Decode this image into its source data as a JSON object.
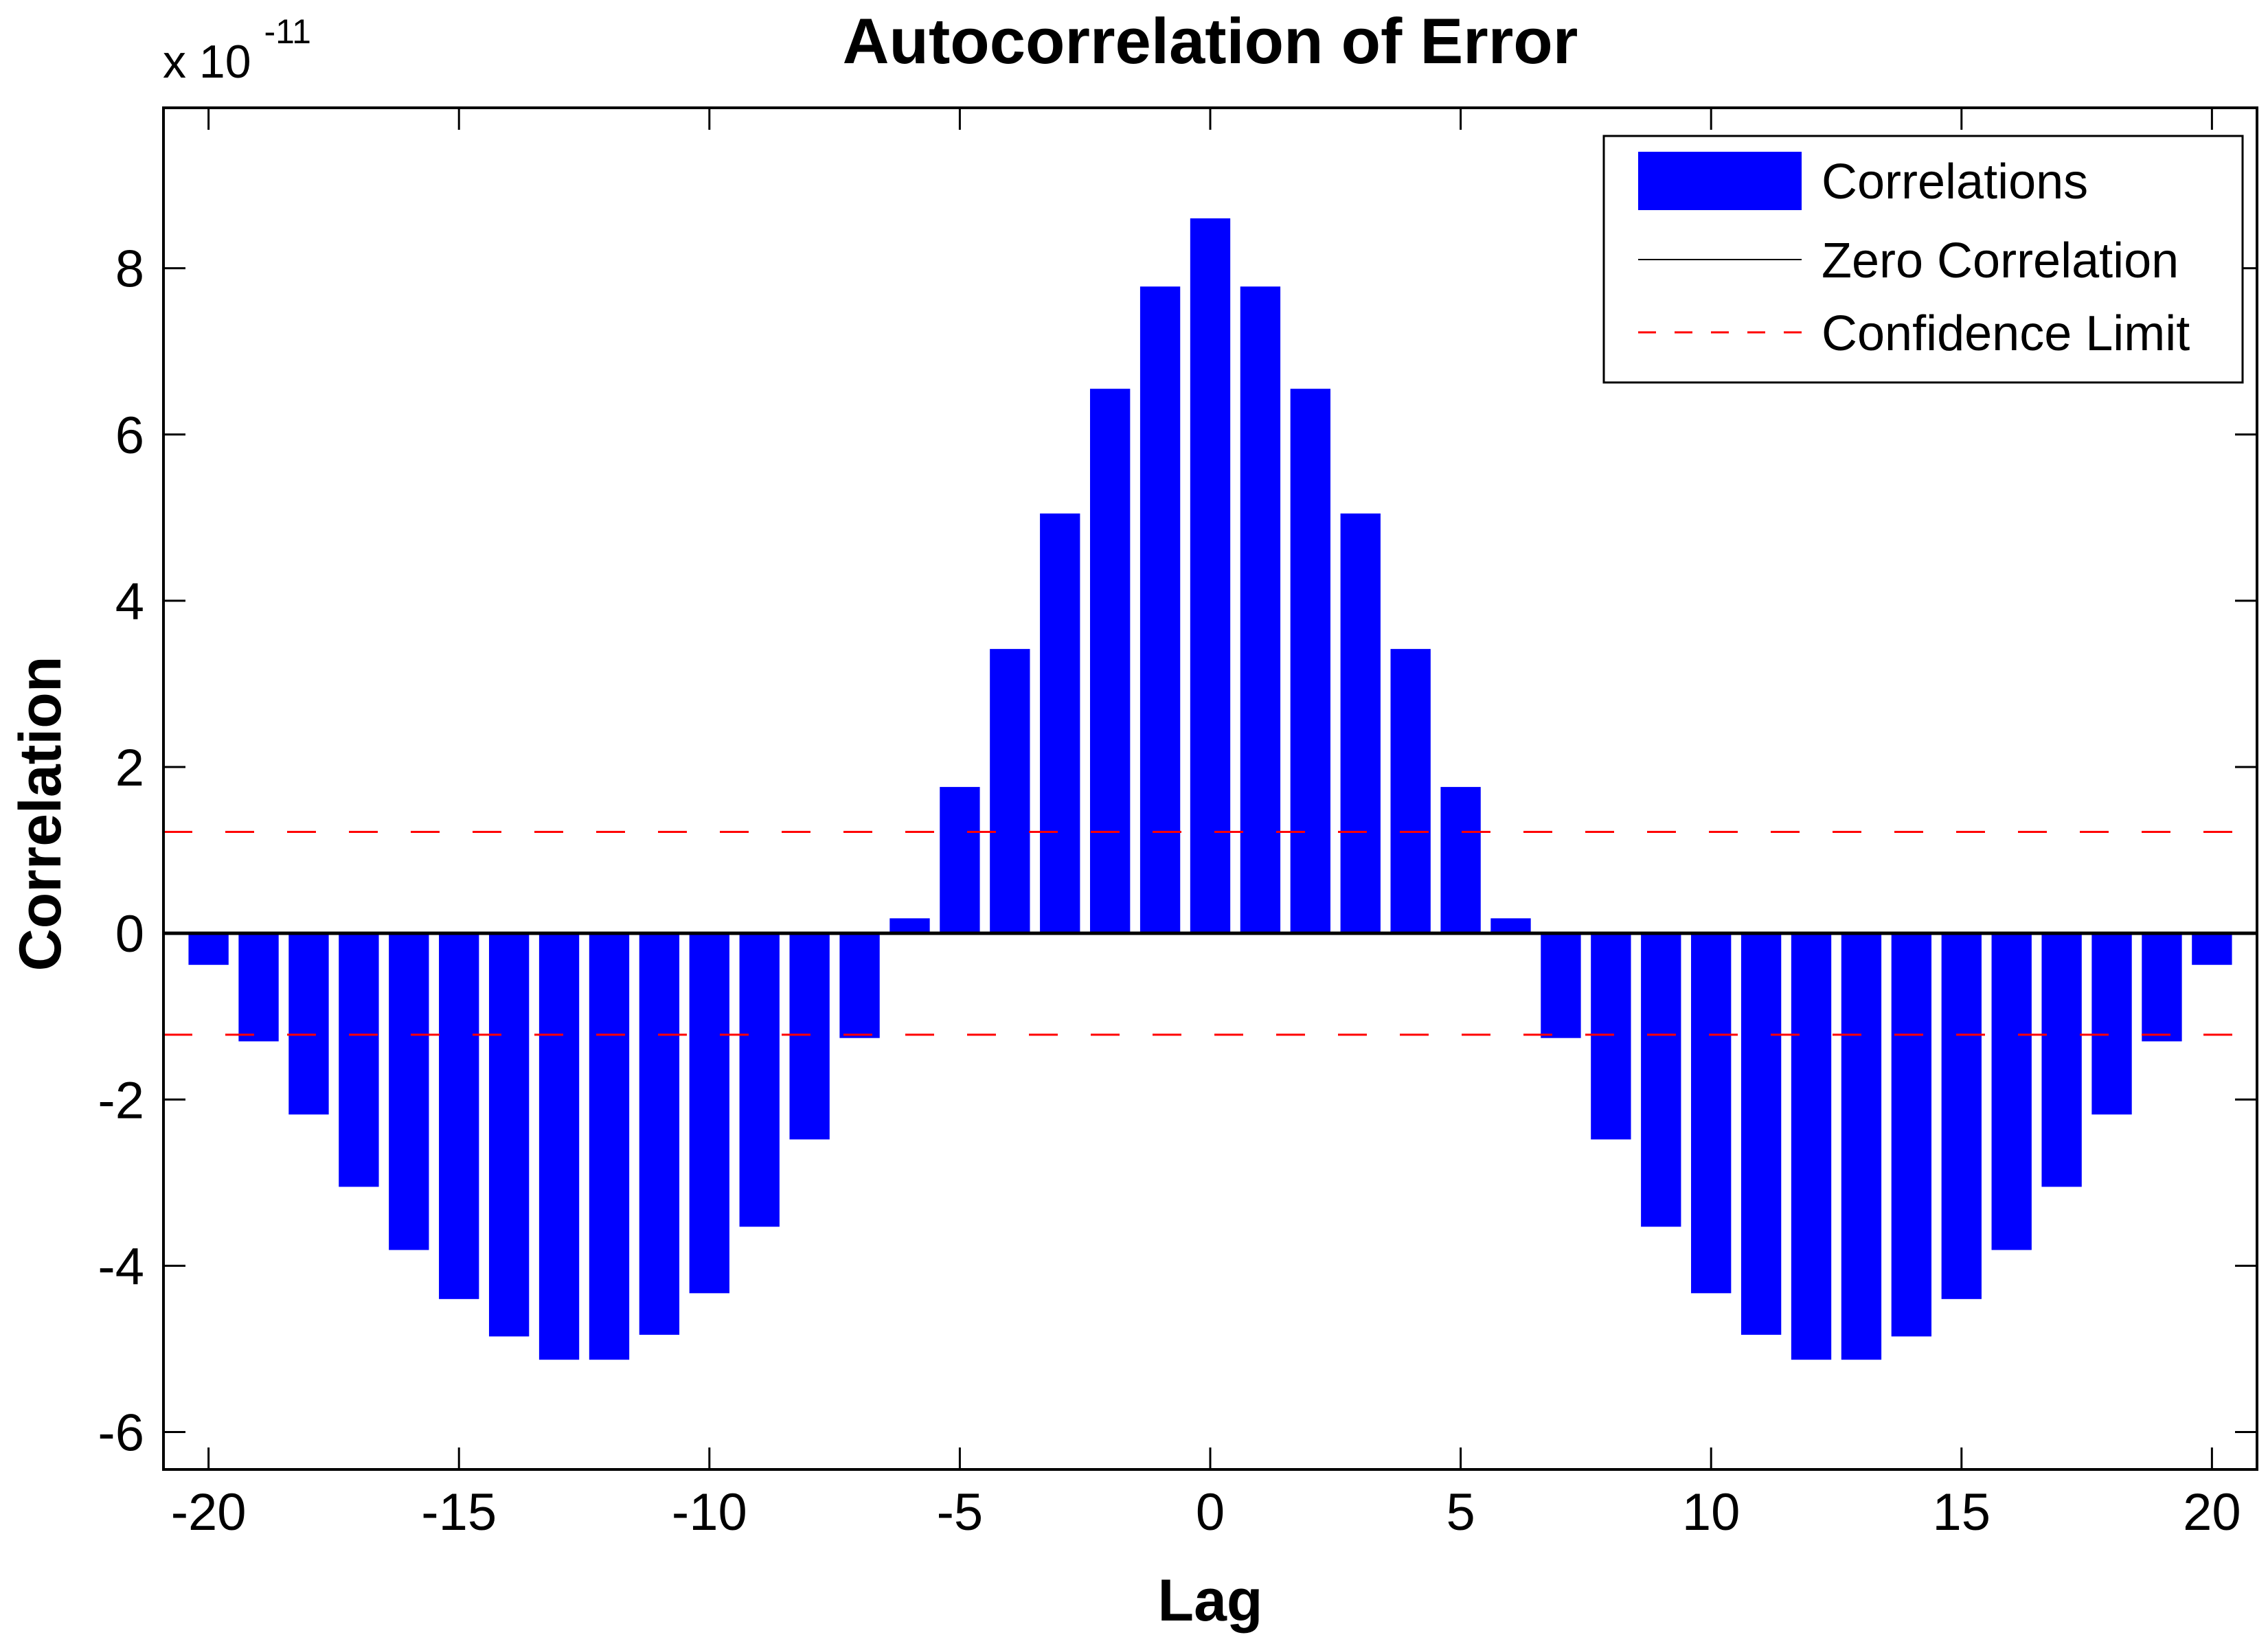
{
  "chart_data": {
    "type": "bar",
    "title": "Autocorrelation of Error",
    "xlabel": "Lag",
    "ylabel": "Correlation",
    "y_axis_multiplier": {
      "base": "x 10",
      "exponent": "-11"
    },
    "value_units": "1e-11",
    "x": [
      -20,
      -19,
      -18,
      -17,
      -16,
      -15,
      -14,
      -13,
      -12,
      -11,
      -10,
      -9,
      -8,
      -7,
      -6,
      -5,
      -4,
      -3,
      -2,
      -1,
      0,
      1,
      2,
      3,
      4,
      5,
      6,
      7,
      8,
      9,
      10,
      11,
      12,
      13,
      14,
      15,
      16,
      17,
      18,
      19,
      20
    ],
    "values": [
      -0.38,
      -1.3,
      -2.18,
      -3.05,
      -3.81,
      -4.4,
      -4.85,
      -5.13,
      -5.13,
      -4.83,
      -4.33,
      -3.53,
      -2.48,
      -1.26,
      0.18,
      1.76,
      3.42,
      5.05,
      6.55,
      7.78,
      8.6,
      7.78,
      6.55,
      5.05,
      3.42,
      1.76,
      0.18,
      -1.26,
      -2.48,
      -3.53,
      -4.33,
      -4.83,
      -5.13,
      -5.13,
      -4.85,
      -4.4,
      -3.81,
      -3.05,
      -2.18,
      -1.3,
      -0.38
    ],
    "zero_correlation": 0,
    "confidence_limit_upper": 1.22,
    "confidence_limit_lower": -1.22,
    "bar_width": 0.8,
    "xlim": [
      -20.9,
      20.9
    ],
    "ylim": [
      -6.45,
      9.93
    ],
    "x_ticks": [
      -20,
      -15,
      -10,
      -5,
      0,
      5,
      10,
      15,
      20
    ],
    "y_ticks": [
      -6,
      -4,
      -2,
      0,
      2,
      4,
      6,
      8
    ],
    "grid": false,
    "legend_position": "top-right",
    "legend": [
      {
        "label": "Correlations",
        "type": "bar",
        "color": "#0000ff"
      },
      {
        "label": "Zero Correlation",
        "type": "line",
        "color": "#000000"
      },
      {
        "label": "Confidence Limit",
        "type": "dashed-line",
        "color": "#ff0000"
      }
    ],
    "colors": {
      "bar": "#0000ff",
      "zero_line": "#000000",
      "confidence_line": "#ff0000",
      "axis": "#000000",
      "background": "#ffffff"
    }
  }
}
